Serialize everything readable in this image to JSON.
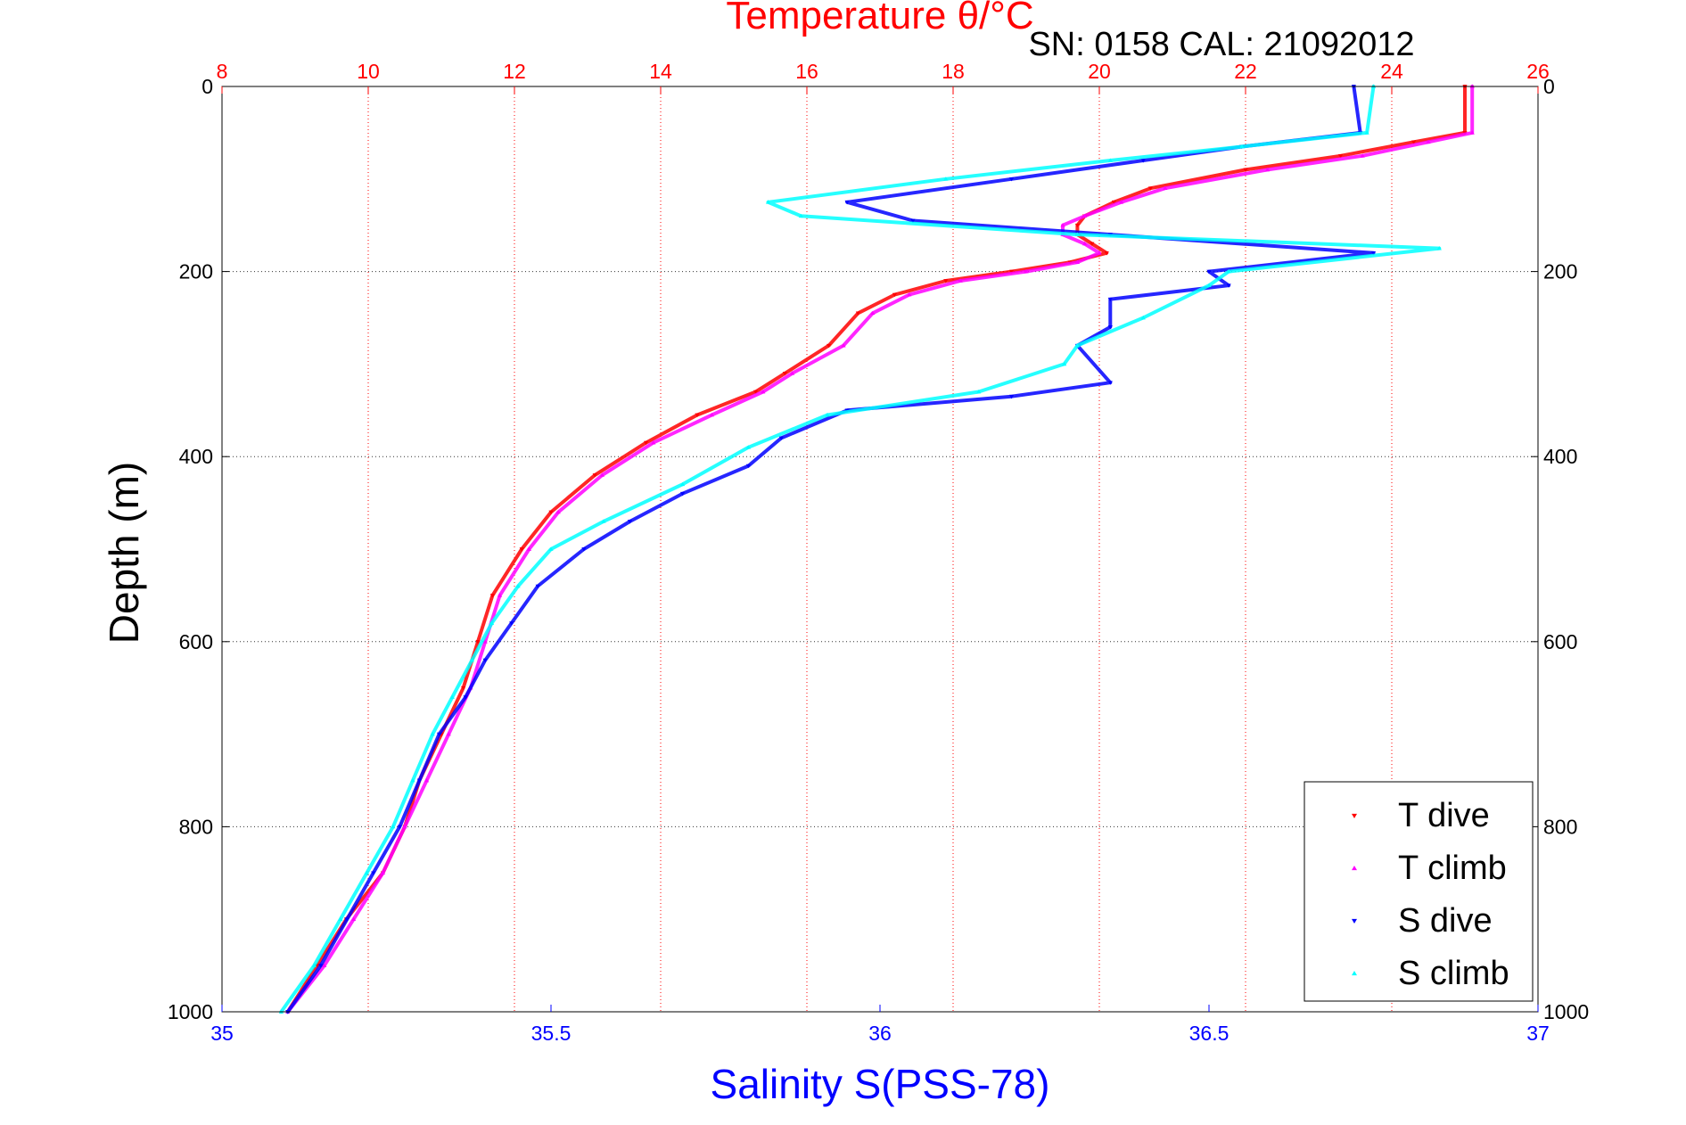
{
  "chart_data": {
    "type": "scatter",
    "title": "Temperature θ/°C",
    "subtitle": "SN: 0158  CAL: 21092012",
    "xlabel": "Salinity S(PSS-78)",
    "ylabel": "Depth (m)",
    "ylim": [
      0,
      1000
    ],
    "y_reversed": true,
    "x_bottom_lim": [
      35,
      37
    ],
    "x_top_lim": [
      8,
      26
    ],
    "y_ticks": [
      "0",
      "200",
      "400",
      "600",
      "800",
      "1000"
    ],
    "x_bottom_ticks": [
      "35",
      "35.5",
      "36",
      "36.5",
      "37"
    ],
    "x_top_ticks": [
      "8",
      "10",
      "12",
      "14",
      "16",
      "18",
      "20",
      "22",
      "24",
      "26"
    ],
    "grid": true,
    "legend_position": "bottom-right",
    "colors": {
      "temperature_axis": "#ff0000",
      "salinity_axis": "#0000ff",
      "grid_bottom": "#333333",
      "grid_top": "#ff0000"
    },
    "series": [
      {
        "name": "T dive",
        "axis": "top",
        "color": "#ff0000",
        "marker": "triangle-down",
        "points": [
          [
            25.0,
            0
          ],
          [
            25.0,
            50
          ],
          [
            24.3,
            60
          ],
          [
            23.3,
            75
          ],
          [
            22.0,
            90
          ],
          [
            20.7,
            110
          ],
          [
            20.2,
            125
          ],
          [
            19.8,
            140
          ],
          [
            19.7,
            150
          ],
          [
            19.7,
            160
          ],
          [
            19.9,
            170
          ],
          [
            20.1,
            180
          ],
          [
            19.6,
            190
          ],
          [
            18.8,
            200
          ],
          [
            17.9,
            210
          ],
          [
            17.2,
            225
          ],
          [
            16.7,
            245
          ],
          [
            16.3,
            280
          ],
          [
            15.7,
            310
          ],
          [
            15.3,
            330
          ],
          [
            14.5,
            355
          ],
          [
            13.8,
            385
          ],
          [
            13.1,
            420
          ],
          [
            12.5,
            460
          ],
          [
            12.1,
            500
          ],
          [
            11.7,
            550
          ],
          [
            11.5,
            600
          ],
          [
            11.3,
            650
          ],
          [
            11.0,
            700
          ],
          [
            10.7,
            750
          ],
          [
            10.5,
            800
          ],
          [
            10.2,
            850
          ],
          [
            9.7,
            900
          ],
          [
            9.3,
            950
          ],
          [
            8.9,
            1000
          ]
        ]
      },
      {
        "name": "T climb",
        "axis": "top",
        "color": "#ff00ff",
        "marker": "triangle-up",
        "points": [
          [
            25.1,
            0
          ],
          [
            25.1,
            50
          ],
          [
            24.5,
            60
          ],
          [
            23.6,
            75
          ],
          [
            22.3,
            90
          ],
          [
            20.9,
            110
          ],
          [
            20.3,
            125
          ],
          [
            19.8,
            140
          ],
          [
            19.5,
            150
          ],
          [
            19.5,
            160
          ],
          [
            19.8,
            170
          ],
          [
            20.0,
            180
          ],
          [
            19.7,
            190
          ],
          [
            19.0,
            200
          ],
          [
            18.1,
            210
          ],
          [
            17.4,
            225
          ],
          [
            16.9,
            245
          ],
          [
            16.5,
            280
          ],
          [
            15.8,
            310
          ],
          [
            15.4,
            330
          ],
          [
            14.7,
            355
          ],
          [
            13.9,
            385
          ],
          [
            13.2,
            420
          ],
          [
            12.6,
            460
          ],
          [
            12.2,
            500
          ],
          [
            11.8,
            550
          ],
          [
            11.6,
            600
          ],
          [
            11.4,
            650
          ],
          [
            11.1,
            700
          ],
          [
            10.8,
            750
          ],
          [
            10.5,
            800
          ],
          [
            10.2,
            850
          ],
          [
            9.8,
            900
          ],
          [
            9.4,
            950
          ],
          [
            8.9,
            1000
          ]
        ]
      },
      {
        "name": "S dive",
        "axis": "bottom",
        "color": "#0000ff",
        "marker": "triangle-down",
        "points": [
          [
            36.72,
            0
          ],
          [
            36.73,
            50
          ],
          [
            36.55,
            65
          ],
          [
            36.4,
            80
          ],
          [
            36.2,
            100
          ],
          [
            35.95,
            125
          ],
          [
            36.05,
            145
          ],
          [
            36.35,
            160
          ],
          [
            36.75,
            180
          ],
          [
            36.5,
            200
          ],
          [
            36.53,
            215
          ],
          [
            36.35,
            230
          ],
          [
            36.35,
            260
          ],
          [
            36.3,
            280
          ],
          [
            36.35,
            320
          ],
          [
            36.2,
            335
          ],
          [
            35.95,
            350
          ],
          [
            35.85,
            380
          ],
          [
            35.8,
            410
          ],
          [
            35.7,
            440
          ],
          [
            35.62,
            470
          ],
          [
            35.55,
            500
          ],
          [
            35.48,
            540
          ],
          [
            35.44,
            580
          ],
          [
            35.4,
            620
          ],
          [
            35.37,
            660
          ],
          [
            35.33,
            700
          ],
          [
            35.3,
            750
          ],
          [
            35.27,
            800
          ],
          [
            35.23,
            850
          ],
          [
            35.19,
            900
          ],
          [
            35.15,
            950
          ],
          [
            35.1,
            1000
          ]
        ]
      },
      {
        "name": "S climb",
        "axis": "bottom",
        "color": "#00ffff",
        "marker": "triangle-up",
        "points": [
          [
            36.75,
            0
          ],
          [
            36.74,
            50
          ],
          [
            36.55,
            65
          ],
          [
            36.35,
            80
          ],
          [
            36.1,
            100
          ],
          [
            35.83,
            125
          ],
          [
            35.88,
            140
          ],
          [
            36.3,
            160
          ],
          [
            36.85,
            175
          ],
          [
            36.53,
            200
          ],
          [
            36.5,
            215
          ],
          [
            36.4,
            250
          ],
          [
            36.3,
            280
          ],
          [
            36.28,
            300
          ],
          [
            36.15,
            330
          ],
          [
            35.92,
            355
          ],
          [
            35.8,
            390
          ],
          [
            35.7,
            430
          ],
          [
            35.58,
            470
          ],
          [
            35.5,
            500
          ],
          [
            35.45,
            540
          ],
          [
            35.41,
            580
          ],
          [
            35.38,
            620
          ],
          [
            35.35,
            660
          ],
          [
            35.32,
            700
          ],
          [
            35.29,
            750
          ],
          [
            35.26,
            800
          ],
          [
            35.22,
            850
          ],
          [
            35.18,
            900
          ],
          [
            35.14,
            950
          ],
          [
            35.09,
            1000
          ]
        ]
      }
    ]
  }
}
